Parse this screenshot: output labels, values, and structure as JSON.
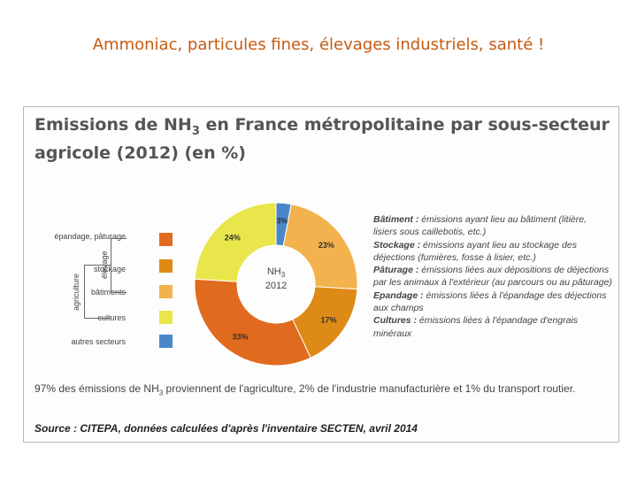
{
  "slide": {
    "title": "Ammoniac, particules fines, élevages industriels, santé !"
  },
  "figure": {
    "title_pre": "Emissions de NH",
    "title_sub": "3",
    "title_post": " en France métropolitaine par sous-secteur agricole (2012) (en %)",
    "center_line1_pre": "NH",
    "center_line1_sub": "3",
    "center_line2": "2012",
    "legend": {
      "epandage": "épandage, pâturage",
      "stockage": "stockage",
      "batiments": "bâtiments",
      "cultures": "cultures",
      "autres": "autres secteurs",
      "elevage": "élevage",
      "agriculture": "agriculture"
    },
    "notes": [
      {
        "term": "Bâtiment :",
        "text": " émissions ayant lieu au bâtiment (litière, lisiers sous caillebotis, etc.)"
      },
      {
        "term": "Stockage :",
        "text": " émissions ayant lieu au stockage des déjections (fumières, fosse à lisier, etc.)"
      },
      {
        "term": "Pâturage :",
        "text": " émissions liées aux dépositions de déjections par les animaux à l'extérieur (au parcours ou au pâturage)"
      },
      {
        "term": "Epandage :",
        "text": " émissions liées à l'épandage des déjections aux champs"
      },
      {
        "term": "Cultures :",
        "text": " émissions liées à l'épandage d'engrais minéraux"
      }
    ],
    "footer_pre": "97% des émissions de NH",
    "footer_sub": "3",
    "footer_post": " proviennent de l'agriculture, 2% de l'industrie manufacturière et 1% du transport routier.",
    "source": "Source : CITEPA, données calculées d'après l'inventaire SECTEN, avril 2014"
  },
  "chart_data": {
    "type": "pie",
    "title": "Emissions de NH3 en France métropolitaine par sous-secteur agricole (2012) (en %)",
    "slices": [
      {
        "name": "autres secteurs",
        "value": 3,
        "label": "3%",
        "color": "#4a86c8"
      },
      {
        "name": "bâtiments",
        "value": 23,
        "label": "23%",
        "color": "#f2b24d"
      },
      {
        "name": "stockage",
        "value": 17,
        "label": "17%",
        "color": "#de8a17"
      },
      {
        "name": "épandage, pâturage",
        "value": 33,
        "label": "33%",
        "color": "#e06b1e"
      },
      {
        "name": "cultures",
        "value": 24,
        "label": "24%",
        "color": "#e8e64a"
      }
    ]
  }
}
